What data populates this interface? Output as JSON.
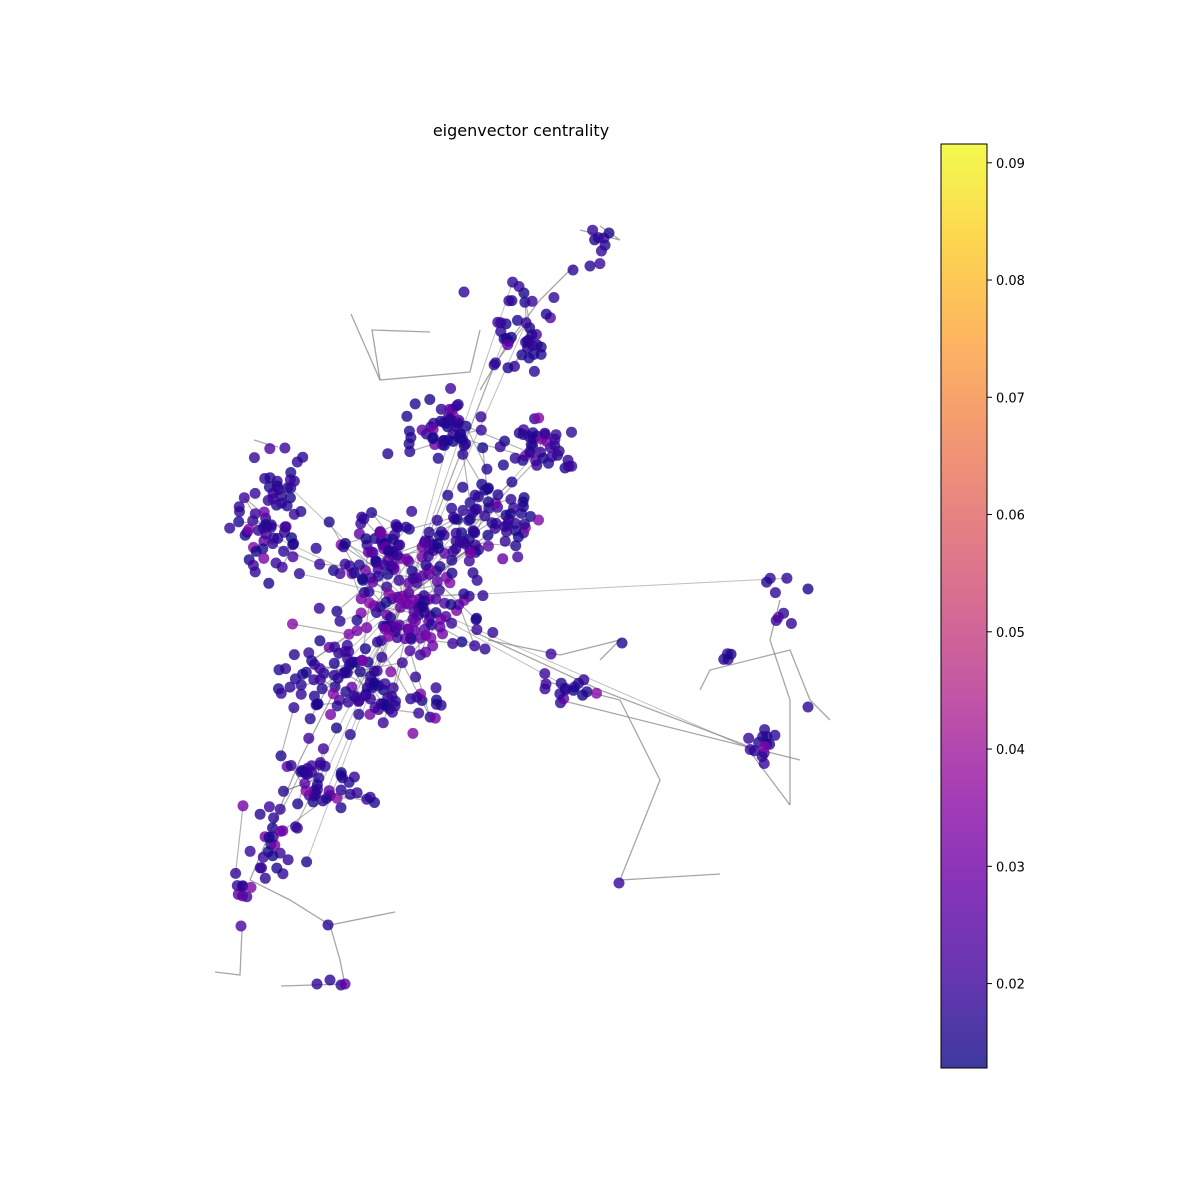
{
  "chart_data": {
    "type": "scatter",
    "title": "eigenvector centrality",
    "xlabel": "",
    "ylabel": "",
    "grid": false,
    "axes_visible": false,
    "colormap": "plasma",
    "node_alpha": 0.8,
    "edge_color": "#808080",
    "colorbar": {
      "orientation": "vertical",
      "placement": "right",
      "range": [
        0.0128,
        0.0916
      ],
      "ticks": [
        0.02,
        0.03,
        0.04,
        0.05,
        0.06,
        0.07,
        0.08,
        0.09
      ],
      "tick_labels": [
        "0.02",
        "0.03",
        "0.04",
        "0.05",
        "0.06",
        "0.07",
        "0.08",
        "0.09"
      ]
    }
  }
}
